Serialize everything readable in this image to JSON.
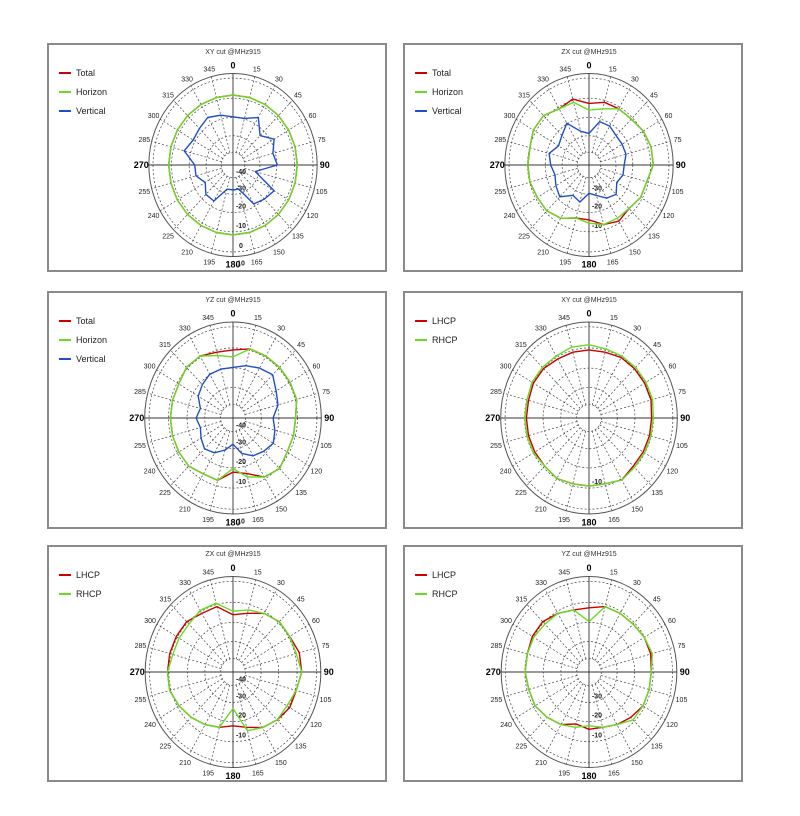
{
  "charts": [
    {
      "title": "XY cut @MHz915",
      "radial_labels": [
        [
          "-40",
          "0.14"
        ],
        [
          "-30",
          "0.32"
        ],
        [
          "-20",
          "0.52"
        ],
        [
          "-10",
          "0.73"
        ],
        [
          "0",
          "0.95"
        ],
        [
          "10",
          "1.14"
        ]
      ],
      "chart_data": {
        "type": "polar",
        "angles_deg": [
          0,
          15,
          30,
          45,
          60,
          75,
          90,
          105,
          120,
          135,
          150,
          165,
          180,
          195,
          210,
          225,
          240,
          255,
          270,
          285,
          300,
          315,
          330,
          345
        ],
        "ring_values": [
          -40,
          -30,
          -20,
          -10,
          0,
          10
        ],
        "series": [
          {
            "name": "Total",
            "color": "#cc0000",
            "values": [
              -3,
              -3,
              -3,
              -3,
              -3,
              -3,
              -3,
              -3,
              -3,
              -3,
              -3,
              -3,
              -3,
              -3,
              -3,
              -3,
              -3,
              -3,
              -3,
              -3,
              -3,
              -3,
              -3,
              -3
            ]
          },
          {
            "name": "Horizon",
            "color": "#66dd22",
            "values": [
              -3,
              -3,
              -3,
              -3,
              -3,
              -3,
              -3,
              -3,
              -3,
              -3,
              -3,
              -3,
              -3,
              -3,
              -3,
              -3,
              -3,
              -3,
              -3,
              -3,
              -3,
              -3,
              -3,
              -3
            ]
          },
          {
            "name": "Vertical",
            "color": "#1f4fc8",
            "values": [
              -16,
              -16,
              -12,
              -20,
              -14,
              -18,
              -16,
              -30,
              -14,
              -16,
              -18,
              -30,
              -30,
              -30,
              -20,
              -20,
              -24,
              -20,
              -20,
              -12,
              -15,
              -14,
              -12,
              -14
            ]
          }
        ]
      }
    },
    {
      "title": "ZX cut @MHz915",
      "radial_labels": [
        [
          "-30",
          "0.32"
        ],
        [
          "-20",
          "0.52"
        ],
        [
          "-10",
          "0.73"
        ]
      ],
      "chart_data": {
        "type": "polar",
        "angles_deg": [
          0,
          15,
          30,
          45,
          60,
          75,
          90,
          105,
          120,
          135,
          150,
          165,
          180,
          195,
          210,
          225,
          240,
          255,
          270,
          285,
          300,
          315,
          330,
          345
        ],
        "ring_values": [
          -40,
          -30,
          -20,
          -10,
          0,
          10
        ],
        "series": [
          {
            "name": "Total",
            "color": "#cc0000",
            "values": [
              -8,
              -6,
              -6,
              -6,
              -4,
              -3,
              -3,
              -6,
              -6,
              -8,
              -6,
              -8,
              -12,
              -12,
              -8,
              -6,
              -6,
              -5,
              -5,
              -5,
              -3,
              -3,
              -6,
              -4
            ]
          },
          {
            "name": "Horizon",
            "color": "#66dd22",
            "values": [
              -12,
              -10,
              -6,
              -6,
              -4,
              -3,
              -3,
              -6,
              -6,
              -8,
              -8,
              -8,
              -10,
              -12,
              -8,
              -6,
              -6,
              -5,
              -5,
              -5,
              -3,
              -3,
              -6,
              -6
            ]
          },
          {
            "name": "Vertical",
            "color": "#1f4fc8",
            "values": [
              -26,
              -18,
              -18,
              -20,
              -20,
              -20,
              -22,
              -22,
              -24,
              -20,
              -22,
              -26,
              -28,
              -22,
              -24,
              -18,
              -20,
              -22,
              -20,
              -18,
              -22,
              -20,
              -16,
              -24
            ]
          }
        ]
      }
    },
    {
      "title": "YZ cut @MHz915",
      "radial_labels": [
        [
          "-40",
          "0.14"
        ],
        [
          "-30",
          "0.32"
        ],
        [
          "-20",
          "0.52"
        ],
        [
          "-10",
          "0.73"
        ],
        [
          "10",
          "1.14"
        ]
      ],
      "chart_data": {
        "type": "polar",
        "angles_deg": [
          0,
          15,
          30,
          45,
          60,
          75,
          90,
          105,
          120,
          135,
          150,
          165,
          180,
          195,
          210,
          225,
          240,
          255,
          270,
          285,
          300,
          315,
          330,
          345
        ],
        "ring_values": [
          -40,
          -30,
          -20,
          -10,
          0,
          10
        ],
        "series": [
          {
            "name": "Total",
            "color": "#cc0000",
            "values": [
              -6,
              -4,
              -4,
              -4,
              -4,
              -4,
              -6,
              -6,
              -6,
              -4,
              -6,
              -12,
              -14,
              -8,
              -8,
              -6,
              -6,
              -6,
              -6,
              -6,
              -6,
              -4,
              -4,
              -6
            ]
          },
          {
            "name": "Horizon",
            "color": "#66dd22",
            "values": [
              -10,
              -4,
              -4,
              -4,
              -4,
              -4,
              -6,
              -6,
              -6,
              -4,
              -6,
              -10,
              -16,
              -8,
              -8,
              -6,
              -6,
              -6,
              -6,
              -6,
              -6,
              -4,
              -4,
              -8
            ]
          },
          {
            "name": "Vertical",
            "color": "#1f4fc8",
            "values": [
              -16,
              -14,
              -12,
              -10,
              -14,
              -16,
              -20,
              -18,
              -16,
              -18,
              -20,
              -24,
              -30,
              -26,
              -22,
              -20,
              -22,
              -24,
              -22,
              -24,
              -20,
              -18,
              -16,
              -16
            ]
          }
        ]
      }
    },
    {
      "title": "XY cut @MHz915",
      "radial_labels": [
        [
          "-10",
          "0.73"
        ]
      ],
      "chart_data": {
        "type": "polar",
        "angles_deg": [
          0,
          15,
          30,
          45,
          60,
          75,
          90,
          105,
          120,
          135,
          150,
          165,
          180,
          195,
          210,
          225,
          240,
          255,
          270,
          285,
          300,
          315,
          330,
          345
        ],
        "ring_values": [
          -40,
          -30,
          -20,
          -10,
          0,
          10
        ],
        "series": [
          {
            "name": "LHCP",
            "color": "#cc0000",
            "values": [
              -6,
              -6,
              -5,
              -5,
              -5,
              -5,
              -6,
              -6,
              -6,
              -6,
              -4,
              -6,
              -6,
              -6,
              -5,
              -6,
              -6,
              -6,
              -6,
              -6,
              -5,
              -5,
              -6,
              -6
            ]
          },
          {
            "name": "RHCP",
            "color": "#66dd22",
            "values": [
              -3,
              -4,
              -4,
              -4,
              -4,
              -4,
              -5,
              -5,
              -5,
              -5,
              -4,
              -6,
              -6,
              -6,
              -5,
              -6,
              -5,
              -5,
              -5,
              -5,
              -4,
              -4,
              -4,
              -3
            ]
          }
        ]
      }
    },
    {
      "title": "ZX cut @MHz915",
      "radial_labels": [
        [
          "-40",
          "0.14"
        ],
        [
          "-30",
          "0.32"
        ],
        [
          "-20",
          "0.52"
        ],
        [
          "-10",
          "0.73"
        ]
      ],
      "chart_data": {
        "type": "polar",
        "angles_deg": [
          0,
          15,
          30,
          45,
          60,
          75,
          90,
          105,
          120,
          135,
          150,
          165,
          180,
          195,
          210,
          225,
          240,
          255,
          270,
          285,
          300,
          315,
          330,
          345
        ],
        "ring_values": [
          -40,
          -30,
          -20,
          -10,
          0,
          10
        ],
        "series": [
          {
            "name": "LHCP",
            "color": "#cc0000",
            "values": [
              -12,
              -10,
              -6,
              -4,
              -4,
              -2,
              -2,
              -4,
              -4,
              -6,
              -8,
              -12,
              -14,
              -12,
              -10,
              -8,
              -6,
              -4,
              -4,
              -4,
              -4,
              -4,
              -6,
              -6
            ]
          },
          {
            "name": "RHCP",
            "color": "#66dd22",
            "values": [
              -10,
              -8,
              -6,
              -4,
              -4,
              -4,
              -2,
              -4,
              -6,
              -6,
              -8,
              -10,
              -24,
              -12,
              -10,
              -8,
              -6,
              -4,
              -4,
              -6,
              -6,
              -6,
              -4,
              -4
            ]
          }
        ]
      }
    },
    {
      "title": "YZ cut @MHz915",
      "radial_labels": [
        [
          "-30",
          "0.32"
        ],
        [
          "-20",
          "0.52"
        ],
        [
          "-10",
          "0.73"
        ]
      ],
      "chart_data": {
        "type": "polar",
        "angles_deg": [
          0,
          15,
          30,
          45,
          60,
          75,
          90,
          105,
          120,
          135,
          150,
          165,
          180,
          195,
          210,
          225,
          240,
          255,
          270,
          285,
          300,
          315,
          330,
          345
        ],
        "ring_values": [
          -40,
          -30,
          -20,
          -10,
          0,
          10
        ],
        "series": [
          {
            "name": "LHCP",
            "color": "#cc0000",
            "values": [
              -8,
              -6,
              -6,
              -6,
              -5,
              -5,
              -6,
              -6,
              -6,
              -8,
              -10,
              -12,
              -12,
              -14,
              -10,
              -8,
              -6,
              -6,
              -5,
              -5,
              -4,
              -4,
              -6,
              -8
            ]
          },
          {
            "name": "RHCP",
            "color": "#66dd22",
            "values": [
              -16,
              -6,
              -6,
              -6,
              -5,
              -4,
              -6,
              -6,
              -6,
              -6,
              -10,
              -12,
              -14,
              -12,
              -10,
              -8,
              -6,
              -6,
              -5,
              -5,
              -5,
              -6,
              -6,
              -8
            ]
          }
        ]
      }
    }
  ]
}
